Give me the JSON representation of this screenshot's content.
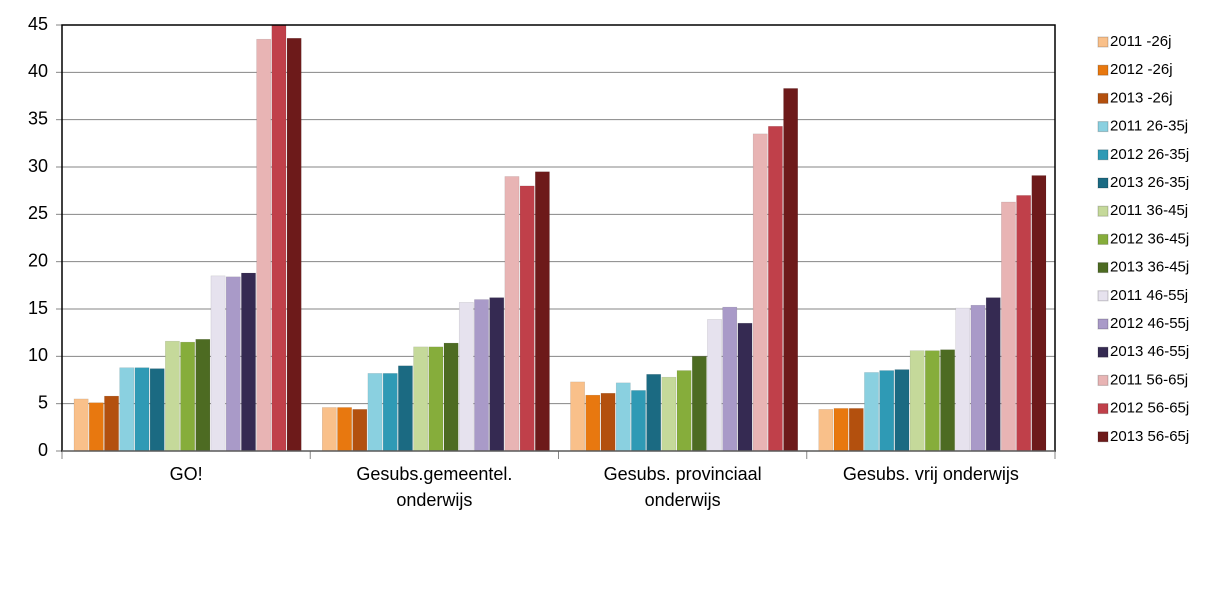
{
  "chart_data": {
    "type": "bar",
    "categories": [
      "GO!",
      "Gesubs.gemeentel. onderwijs",
      "Gesubs. provinciaal onderwijs",
      "Gesubs. vrij onderwijs"
    ],
    "series": [
      {
        "name": "2011 -26j",
        "color": "#f9c08a",
        "values": [
          5.5,
          4.6,
          7.3,
          4.4
        ]
      },
      {
        "name": "2012 -26j",
        "color": "#e8780f",
        "values": [
          5.1,
          4.6,
          5.9,
          4.5
        ]
      },
      {
        "name": "2013 -26j",
        "color": "#b3500e",
        "values": [
          5.8,
          4.4,
          6.1,
          4.5
        ]
      },
      {
        "name": "2011 26-35j",
        "color": "#8ad0e0",
        "values": [
          8.8,
          8.2,
          7.2,
          8.3
        ]
      },
      {
        "name": "2012 26-35j",
        "color": "#2f9ab5",
        "values": [
          8.8,
          8.2,
          6.4,
          8.5
        ]
      },
      {
        "name": "2013 26-35j",
        "color": "#1b6a82",
        "values": [
          8.7,
          9.0,
          8.1,
          8.6
        ]
      },
      {
        "name": "2011 36-45j",
        "color": "#c5d99a",
        "values": [
          11.6,
          11.0,
          7.8,
          10.6
        ]
      },
      {
        "name": "2012 36-45j",
        "color": "#86ad3b",
        "values": [
          11.5,
          11.0,
          8.5,
          10.6
        ]
      },
      {
        "name": "2013 36-45j",
        "color": "#4d6b22",
        "values": [
          11.8,
          11.4,
          10.0,
          10.7
        ]
      },
      {
        "name": "2011 46-55j",
        "color": "#e6e2ee",
        "values": [
          18.5,
          15.7,
          13.9,
          15.1
        ]
      },
      {
        "name": "2012 46-55j",
        "color": "#a99ac8",
        "values": [
          18.4,
          16.0,
          15.2,
          15.4
        ]
      },
      {
        "name": "2013 46-55j",
        "color": "#352a52",
        "values": [
          18.8,
          16.2,
          13.5,
          16.2
        ]
      },
      {
        "name": "2011 56-65j",
        "color": "#e8b4b4",
        "values": [
          43.5,
          29.0,
          33.5,
          26.3
        ]
      },
      {
        "name": "2012 56-65j",
        "color": "#c0404a",
        "values": [
          45.0,
          28.0,
          34.3,
          27.0
        ]
      },
      {
        "name": "2013 56-65j",
        "color": "#6d1a1a",
        "values": [
          43.6,
          29.5,
          38.3,
          29.1
        ]
      }
    ],
    "ylim": [
      0,
      45
    ],
    "yticks": [
      0,
      5,
      10,
      15,
      20,
      25,
      30,
      35,
      40,
      45
    ],
    "grid": true,
    "legend": "right"
  }
}
